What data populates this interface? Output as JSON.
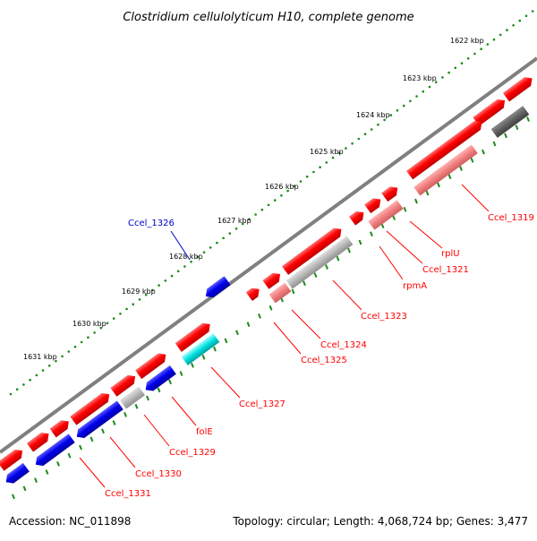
{
  "title": "Clostridium cellulolyticum H10, complete genome",
  "footer": {
    "accession": "Accession: NC_011898",
    "summary": "Topology: circular; Length: 4,068,724 bp; Genes: 3,477"
  },
  "ticks": [
    "1622 kbp",
    "1623 kbp",
    "1624 kbp",
    "1625 kbp",
    "1626 kbp",
    "1627 kbp",
    "1628 kbp",
    "1629 kbp",
    "1630 kbp",
    "1631 kbp"
  ],
  "genes": [
    {
      "name": "Ccel_1319",
      "color": "#ff0000"
    },
    {
      "name": "rplU",
      "color": "#ff0000"
    },
    {
      "name": "Ccel_1321",
      "color": "#ff0000"
    },
    {
      "name": "rpmA",
      "color": "#ff0000"
    },
    {
      "name": "Ccel_1323",
      "color": "#ff0000"
    },
    {
      "name": "Ccel_1324",
      "color": "#ff0000"
    },
    {
      "name": "Ccel_1325",
      "color": "#ff0000"
    },
    {
      "name": "Ccel_1326",
      "color": "#0000cc"
    },
    {
      "name": "Ccel_1327",
      "color": "#ff0000"
    },
    {
      "name": "folE",
      "color": "#ff0000"
    },
    {
      "name": "Ccel_1329",
      "color": "#ff0000"
    },
    {
      "name": "Ccel_1330",
      "color": "#ff0000"
    },
    {
      "name": "Ccel_1331",
      "color": "#ff0000"
    }
  ],
  "colors": {
    "cds_forward": "#ff0000",
    "cds_reverse": "#0000ff",
    "rna_or_pseudo": "#ff8080",
    "grey_feature": "#b0b0b0",
    "dark_feature": "#606060",
    "cyan_feature": "#00e0e0",
    "backbone": "#808080",
    "tick_green": "#1a8a1a"
  }
}
